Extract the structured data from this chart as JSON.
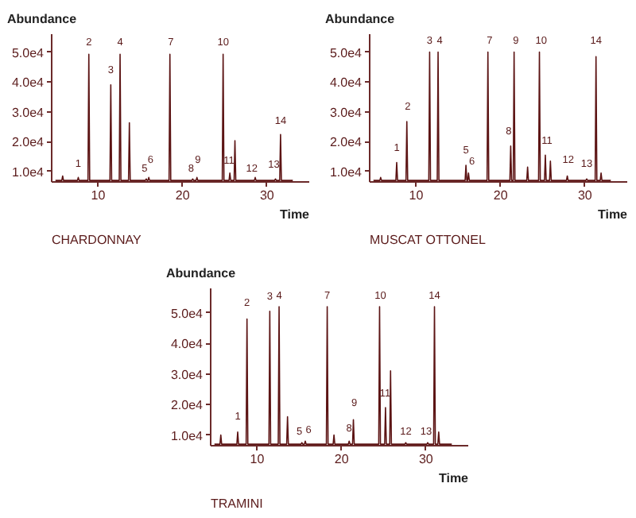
{
  "chart_data": [
    {
      "type": "line",
      "title": "CHARDONNAY",
      "ylabel": "Abundance",
      "xlabel": "Time",
      "xlim": [
        4.5,
        35
      ],
      "ylim": [
        6500,
        56000
      ],
      "xticks": [
        10,
        20,
        30
      ],
      "yticks": [
        {
          "value": 10000,
          "label": "1.0e4"
        },
        {
          "value": 20000,
          "label": "2.0e4"
        },
        {
          "value": 30000,
          "label": "3.0e4"
        },
        {
          "value": 40000,
          "label": "4.0e4"
        },
        {
          "value": 50000,
          "label": "5.0e4"
        }
      ],
      "series": [
        {
          "color": "#5c1414",
          "x": [
            5.0,
            5.7,
            5.8,
            5.9,
            7.55,
            7.65,
            7.75,
            8.8,
            8.9,
            9.0,
            11.4,
            11.5,
            11.6,
            12.5,
            12.6,
            12.7,
            13.6,
            13.7,
            13.8,
            15.6,
            15.7,
            15.8,
            15.9,
            16.0,
            16.1,
            18.4,
            18.5,
            18.6,
            21.1,
            21.2,
            21.3,
            21.6,
            21.7,
            21.8,
            24.7,
            24.8,
            24.9,
            25.5,
            25.6,
            25.7,
            26.1,
            26.2,
            26.3,
            28.5,
            28.6,
            28.7,
            30.9,
            31.0,
            31.1,
            31.5,
            31.6,
            31.7,
            33.0
          ],
          "values": [
            7000,
            7000,
            8500,
            7000,
            7000,
            8000,
            7000,
            7000,
            49300,
            7000,
            7000,
            39000,
            7000,
            7000,
            49300,
            7000,
            7000,
            26300,
            7000,
            7000,
            7500,
            7000,
            7000,
            8000,
            7000,
            7000,
            49300,
            7000,
            7000,
            7500,
            7000,
            7000,
            8000,
            7000,
            7000,
            49300,
            7000,
            7000,
            9500,
            7000,
            7000,
            20300,
            7000,
            7000,
            8000,
            7000,
            7000,
            7500,
            7000,
            7000,
            22400,
            7000,
            7000
          ]
        }
      ],
      "annotations": [
        {
          "text": "1",
          "x": 7.65,
          "y": 8900
        },
        {
          "text": "2",
          "x": 8.9,
          "y": 49700
        },
        {
          "text": "3",
          "x": 11.5,
          "y": 40200
        },
        {
          "text": "4",
          "x": 12.6,
          "y": 49700
        },
        {
          "text": "5",
          "x": 15.5,
          "y": 7300
        },
        {
          "text": "6",
          "x": 16.2,
          "y": 10300
        },
        {
          "text": "7",
          "x": 18.6,
          "y": 49700
        },
        {
          "text": "8",
          "x": 21.0,
          "y": 7300
        },
        {
          "text": "9",
          "x": 21.8,
          "y": 10300
        },
        {
          "text": "10",
          "x": 24.8,
          "y": 49700
        },
        {
          "text": "11",
          "x": 25.5,
          "y": 9900
        },
        {
          "text": "12",
          "x": 28.2,
          "y": 7400
        },
        {
          "text": "13",
          "x": 30.8,
          "y": 8500
        },
        {
          "text": "14",
          "x": 31.6,
          "y": 23200
        }
      ]
    },
    {
      "type": "line",
      "title": "MUSCAT OTTONEL",
      "ylabel": "Abundance",
      "xlabel": "Time",
      "xlim": [
        4.5,
        35
      ],
      "ylim": [
        6500,
        56000
      ],
      "xticks": [
        10,
        20,
        30
      ],
      "yticks": [
        {
          "value": 10000,
          "label": "1.0e4"
        },
        {
          "value": 20000,
          "label": "2.0e4"
        },
        {
          "value": 30000,
          "label": "3.0e4"
        },
        {
          "value": 40000,
          "label": "4.0e4"
        },
        {
          "value": 50000,
          "label": "5.0e4"
        }
      ],
      "series": [
        {
          "color": "#5c1414",
          "x": [
            5.0,
            5.7,
            5.8,
            5.9,
            7.6,
            7.7,
            7.8,
            8.8,
            8.9,
            9.0,
            11.5,
            11.6,
            11.7,
            12.5,
            12.6,
            12.7,
            15.8,
            15.9,
            16.0,
            16.1,
            16.2,
            16.3,
            18.4,
            18.5,
            18.6,
            21.1,
            21.2,
            21.3,
            21.5,
            21.6,
            21.7,
            23.1,
            23.2,
            23.3,
            24.5,
            24.6,
            24.7,
            25.2,
            25.3,
            25.4,
            25.8,
            25.9,
            26.0,
            27.8,
            27.9,
            28.0,
            30.1,
            30.2,
            30.3,
            31.2,
            31.3,
            31.4,
            31.8,
            31.9,
            32.0,
            33.0
          ],
          "values": [
            7000,
            7000,
            8000,
            7000,
            7000,
            13000,
            7000,
            7000,
            26700,
            7000,
            7000,
            50000,
            7000,
            7000,
            50000,
            7000,
            7000,
            12100,
            7000,
            7000,
            9500,
            7000,
            7000,
            50000,
            7000,
            7000,
            18500,
            7000,
            7000,
            50000,
            7000,
            7000,
            11500,
            7000,
            7000,
            50000,
            7000,
            7000,
            15500,
            7000,
            7000,
            13500,
            7000,
            7000,
            8500,
            7000,
            7000,
            7500,
            7000,
            7000,
            48500,
            7000,
            7000,
            9500,
            7000,
            7000
          ]
        }
      ],
      "annotations": [
        {
          "text": "1",
          "x": 7.7,
          "y": 14200
        },
        {
          "text": "2",
          "x": 9.0,
          "y": 28000
        },
        {
          "text": "3",
          "x": 11.6,
          "y": 50200
        },
        {
          "text": "4",
          "x": 12.8,
          "y": 50200
        },
        {
          "text": "5",
          "x": 15.9,
          "y": 13500
        },
        {
          "text": "6",
          "x": 16.6,
          "y": 9700
        },
        {
          "text": "7",
          "x": 18.7,
          "y": 50200
        },
        {
          "text": "8",
          "x": 20.95,
          "y": 19700
        },
        {
          "text": "9",
          "x": 21.8,
          "y": 50200
        },
        {
          "text": "10",
          "x": 24.8,
          "y": 50200
        },
        {
          "text": "11",
          "x": 25.5,
          "y": 16700
        },
        {
          "text": "12",
          "x": 28.0,
          "y": 10300
        },
        {
          "text": "13",
          "x": 30.2,
          "y": 9000
        },
        {
          "text": "14",
          "x": 31.3,
          "y": 50200
        }
      ]
    },
    {
      "type": "line",
      "title": "TRAMINI",
      "ylabel": "Abundance",
      "xlabel": "Time",
      "xlim": [
        4.5,
        35
      ],
      "ylim": [
        6500,
        58000
      ],
      "xticks": [
        10,
        20,
        30
      ],
      "yticks": [
        {
          "value": 10000,
          "label": "1.0e4"
        },
        {
          "value": 20000,
          "label": "2.0e4"
        },
        {
          "value": 30000,
          "label": "3.0e4"
        },
        {
          "value": 40000,
          "label": "4.0e4"
        },
        {
          "value": 50000,
          "label": "5.0e4"
        }
      ],
      "series": [
        {
          "color": "#5c1414",
          "x": [
            5.0,
            5.6,
            5.7,
            5.8,
            7.6,
            7.7,
            7.8,
            8.7,
            8.8,
            8.9,
            11.4,
            11.5,
            11.6,
            12.5,
            12.6,
            12.7,
            13.5,
            13.6,
            13.7,
            15.2,
            15.3,
            15.4,
            15.6,
            15.7,
            15.8,
            18.2,
            18.3,
            18.4,
            19.0,
            19.1,
            19.2,
            20.8,
            20.9,
            21.0,
            21.3,
            21.4,
            21.5,
            24.4,
            24.5,
            24.6,
            25.1,
            25.2,
            25.3,
            25.7,
            25.8,
            25.9,
            27.5,
            27.6,
            27.7,
            30.1,
            30.2,
            30.3,
            30.9,
            31.0,
            31.1,
            31.4,
            31.5,
            31.6,
            33.0
          ],
          "values": [
            7000,
            7000,
            10000,
            7000,
            7000,
            11000,
            7000,
            7000,
            48000,
            7000,
            7000,
            50500,
            7000,
            7000,
            52000,
            7000,
            7000,
            16000,
            7000,
            7000,
            7500,
            7000,
            7000,
            8000,
            7000,
            7000,
            52000,
            7000,
            7000,
            10000,
            7000,
            7000,
            8000,
            7000,
            7000,
            15000,
            7000,
            7000,
            52000,
            7000,
            7000,
            19000,
            7000,
            7000,
            31000,
            7000,
            7000,
            7500,
            7000,
            7000,
            7500,
            7000,
            7000,
            52000,
            7000,
            7000,
            11000,
            7000,
            7000
          ]
        }
      ],
      "annotations": [
        {
          "text": "1",
          "x": 7.7,
          "y": 12400
        },
        {
          "text": "2",
          "x": 8.8,
          "y": 49700
        },
        {
          "text": "3",
          "x": 11.5,
          "y": 51800
        },
        {
          "text": "4",
          "x": 12.6,
          "y": 52000
        },
        {
          "text": "5",
          "x": 15.0,
          "y": 7500
        },
        {
          "text": "6",
          "x": 16.1,
          "y": 8000
        },
        {
          "text": "7",
          "x": 18.3,
          "y": 52000
        },
        {
          "text": "8",
          "x": 20.9,
          "y": 8500
        },
        {
          "text": "9",
          "x": 21.5,
          "y": 16800
        },
        {
          "text": "10",
          "x": 24.6,
          "y": 52000
        },
        {
          "text": "11",
          "x": 25.15,
          "y": 20000
        },
        {
          "text": "12",
          "x": 27.6,
          "y": 7600
        },
        {
          "text": "13",
          "x": 30.0,
          "y": 7600
        },
        {
          "text": "14",
          "x": 31.0,
          "y": 52000
        }
      ]
    }
  ]
}
